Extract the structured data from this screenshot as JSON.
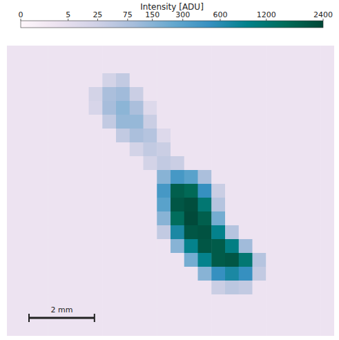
{
  "chart_data": {
    "type": "heatmap",
    "tick_labels": false,
    "xlim": [
      0,
      10
    ],
    "colorbar": {
      "label": "Intensity [ADU]",
      "range": [
        0,
        2400
      ],
      "ticks": [
        0,
        5,
        25,
        75,
        150,
        300,
        600,
        1200,
        2400
      ]
    },
    "scale_bar": {
      "length": 2,
      "label": "2 mm"
    },
    "cells": [
      [
        2,
        2,
        2,
        2,
        2,
        2,
        2,
        2,
        2,
        2,
        2,
        2,
        2,
        2,
        2,
        2,
        2,
        2,
        2,
        2,
        2,
        2,
        2,
        2
      ],
      [
        2,
        2,
        2,
        2,
        2,
        2,
        2,
        2,
        2,
        2,
        2,
        2,
        2,
        2,
        2,
        2,
        2,
        2,
        2,
        2,
        2,
        2,
        2,
        2
      ],
      [
        2,
        2,
        2,
        2,
        2,
        2,
        2,
        20,
        40,
        2,
        2,
        2,
        2,
        2,
        2,
        2,
        2,
        2,
        2,
        2,
        2,
        2,
        2,
        2
      ],
      [
        2,
        2,
        2,
        2,
        2,
        2,
        20,
        80,
        100,
        30,
        2,
        2,
        2,
        2,
        2,
        2,
        2,
        2,
        2,
        2,
        2,
        2,
        2,
        2
      ],
      [
        2,
        2,
        2,
        2,
        2,
        2,
        15,
        90,
        140,
        80,
        10,
        2,
        2,
        2,
        2,
        2,
        2,
        2,
        2,
        2,
        2,
        2,
        2,
        2
      ],
      [
        2,
        2,
        2,
        2,
        2,
        2,
        2,
        40,
        120,
        120,
        30,
        2,
        2,
        2,
        2,
        2,
        2,
        2,
        2,
        2,
        2,
        2,
        2,
        2
      ],
      [
        2,
        2,
        2,
        2,
        2,
        2,
        2,
        2,
        40,
        80,
        60,
        10,
        2,
        2,
        2,
        2,
        2,
        2,
        2,
        2,
        2,
        2,
        2,
        2
      ],
      [
        2,
        2,
        2,
        2,
        2,
        2,
        2,
        2,
        2,
        20,
        40,
        30,
        2,
        2,
        2,
        2,
        2,
        2,
        2,
        2,
        2,
        2,
        2,
        2
      ],
      [
        2,
        2,
        2,
        2,
        2,
        2,
        2,
        2,
        2,
        2,
        20,
        40,
        30,
        2,
        2,
        2,
        2,
        2,
        2,
        2,
        2,
        2,
        2,
        2
      ],
      [
        2,
        2,
        2,
        2,
        2,
        2,
        2,
        2,
        2,
        2,
        2,
        150,
        400,
        300,
        80,
        2,
        2,
        2,
        2,
        2,
        2,
        2,
        2,
        2
      ],
      [
        2,
        2,
        2,
        2,
        2,
        2,
        2,
        2,
        2,
        2,
        2,
        400,
        1800,
        1600,
        500,
        30,
        2,
        2,
        2,
        2,
        2,
        2,
        2,
        2
      ],
      [
        2,
        2,
        2,
        2,
        2,
        2,
        2,
        2,
        2,
        2,
        2,
        300,
        2000,
        2200,
        1200,
        60,
        2,
        2,
        2,
        2,
        2,
        2,
        2,
        2
      ],
      [
        2,
        2,
        2,
        2,
        2,
        2,
        2,
        2,
        2,
        2,
        2,
        150,
        1500,
        2300,
        1800,
        200,
        2,
        2,
        2,
        2,
        2,
        2,
        2,
        2
      ],
      [
        2,
        2,
        2,
        2,
        2,
        2,
        2,
        2,
        2,
        2,
        2,
        40,
        700,
        2000,
        2100,
        900,
        60,
        2,
        2,
        2,
        2,
        2,
        2,
        2
      ],
      [
        2,
        2,
        2,
        2,
        2,
        2,
        2,
        2,
        2,
        2,
        2,
        2,
        150,
        900,
        2000,
        1900,
        1000,
        100,
        2,
        2,
        2,
        2,
        2,
        2
      ],
      [
        2,
        2,
        2,
        2,
        2,
        2,
        2,
        2,
        2,
        2,
        2,
        2,
        2,
        200,
        900,
        1900,
        2000,
        1200,
        60,
        2,
        2,
        2,
        2,
        2
      ],
      [
        2,
        2,
        2,
        2,
        2,
        2,
        2,
        2,
        2,
        2,
        2,
        2,
        2,
        2,
        150,
        500,
        700,
        500,
        40,
        2,
        2,
        2,
        2,
        2
      ],
      [
        2,
        2,
        2,
        2,
        2,
        2,
        2,
        2,
        2,
        2,
        2,
        2,
        2,
        2,
        2,
        30,
        50,
        40,
        2,
        2,
        2,
        2,
        2,
        2
      ],
      [
        2,
        2,
        2,
        2,
        2,
        2,
        2,
        2,
        2,
        2,
        2,
        2,
        2,
        2,
        2,
        2,
        2,
        2,
        2,
        2,
        2,
        2,
        2,
        2
      ],
      [
        2,
        2,
        2,
        2,
        2,
        2,
        2,
        2,
        2,
        2,
        2,
        2,
        2,
        2,
        2,
        2,
        2,
        2,
        2,
        2,
        2,
        2,
        2,
        2
      ],
      [
        2,
        2,
        2,
        2,
        2,
        2,
        2,
        2,
        2,
        2,
        2,
        2,
        2,
        2,
        2,
        2,
        2,
        2,
        2,
        2,
        2,
        2,
        2,
        2
      ]
    ]
  }
}
